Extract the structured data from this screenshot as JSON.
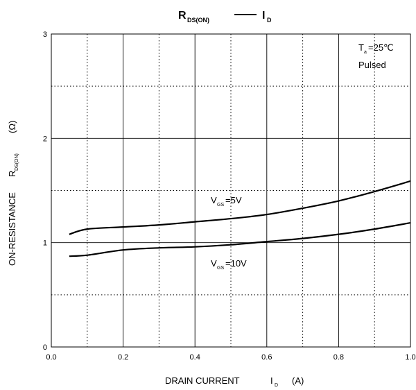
{
  "chart_data": {
    "type": "line",
    "title": {
      "r_main": "R",
      "r_sub": "DS(ON)",
      "i_main": "I",
      "i_sub": "D"
    },
    "xlabel": {
      "main": "DRAIN CURRENT",
      "sym": "I",
      "sub": "D",
      "unit": "(A)"
    },
    "ylabel": {
      "main": "ON-RESISTANCE",
      "sym": "R",
      "sub": "DS(ON)",
      "unit": "(Ω)"
    },
    "xlim": [
      0,
      1.0
    ],
    "ylim": [
      0,
      3
    ],
    "x_ticks": [
      "0.0",
      "0.2",
      "0.4",
      "0.6",
      "0.8",
      "1.0"
    ],
    "y_ticks": [
      "0",
      "1",
      "2",
      "3"
    ],
    "grid": true,
    "conditions": {
      "ta_main": "T",
      "ta_sub": "a",
      "ta_value": "=25℃",
      "mode": "Pulsed"
    },
    "series": [
      {
        "name": "VGS=5V",
        "label": {
          "main": "V",
          "sub": "GS",
          "rest": "=5V"
        },
        "x": [
          0.05,
          0.1,
          0.2,
          0.3,
          0.4,
          0.5,
          0.6,
          0.7,
          0.8,
          0.9,
          1.0
        ],
        "y": [
          1.08,
          1.13,
          1.15,
          1.17,
          1.2,
          1.23,
          1.27,
          1.33,
          1.4,
          1.49,
          1.59
        ]
      },
      {
        "name": "VGS=10V",
        "label": {
          "main": "V",
          "sub": "GS",
          "rest": "=10V"
        },
        "x": [
          0.05,
          0.1,
          0.2,
          0.3,
          0.4,
          0.5,
          0.6,
          0.7,
          0.8,
          0.9,
          1.0
        ],
        "y": [
          0.87,
          0.88,
          0.93,
          0.95,
          0.96,
          0.98,
          1.01,
          1.04,
          1.08,
          1.13,
          1.19
        ]
      }
    ]
  }
}
